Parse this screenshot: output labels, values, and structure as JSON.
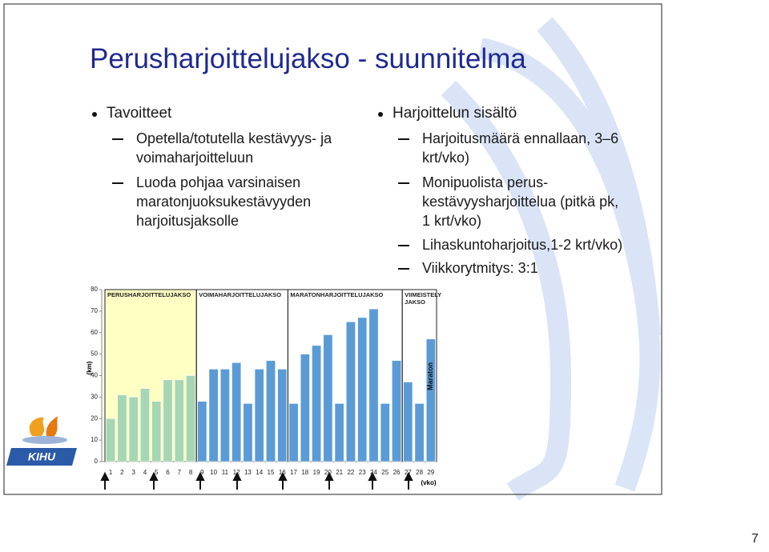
{
  "title": "Perusharjoittelujakso - suunnitelma",
  "left": {
    "heading": "Tavoitteet",
    "items": [
      [
        "Opetella/totutella kestävyys- ja",
        "voimaharjoitteluun"
      ],
      [
        "Luoda pohjaa varsinaisen",
        "maratonjuoksukestävyyden",
        "harjoitusjaksolle"
      ]
    ]
  },
  "right": {
    "heading": "Harjoittelun sisältö",
    "items": [
      [
        "Harjoitusmäärä ennallaan, 3–6",
        "krt/vko)"
      ],
      [
        "Monipuolista perus-",
        "kestävyysharjoittelua (pitkä pk,",
        "1 krt/vko)"
      ],
      [
        "Lihaskuntoharjoitus,1-2 krt/vko)"
      ],
      [
        "Viikkorytmitys: 3:1"
      ]
    ]
  },
  "logo": "KIHU",
  "page_number": "7",
  "chart_data": {
    "type": "bar",
    "x_label": "(vko)",
    "y_label": "(km)",
    "categories": [
      "1",
      "2",
      "3",
      "4",
      "5",
      "6",
      "7",
      "8",
      "9",
      "10",
      "11",
      "12",
      "13",
      "14",
      "15",
      "16",
      "17",
      "18",
      "19",
      "20",
      "21",
      "22",
      "23",
      "24",
      "25",
      "26",
      "27",
      "28",
      "29"
    ],
    "values": [
      20,
      31,
      30,
      34,
      28,
      38,
      38,
      40,
      28,
      43,
      43,
      46,
      27,
      43,
      47,
      43,
      27,
      50,
      54,
      59,
      27,
      65,
      67,
      71,
      27,
      47,
      37,
      27,
      57
    ],
    "ylim": [
      0,
      80
    ],
    "yticks": [
      0,
      10,
      20,
      30,
      40,
      50,
      60,
      70,
      80
    ],
    "phases": [
      {
        "label": "PERUSHARJOITTELUJAKSO",
        "weeks": [
          1,
          8
        ],
        "color": "#a6d6b4",
        "background": "#ffffc4"
      },
      {
        "label": "VOIMAHARJOITTELUJAKSO",
        "weeks": [
          9,
          16
        ],
        "color": "#5b9bd5"
      },
      {
        "label": "MARATONHARJOITTELUJAKSO",
        "weeks": [
          17,
          26
        ],
        "color": "#5b9bd5"
      },
      {
        "label": "VIIMEISTELY JAKSO",
        "weeks": [
          27,
          29
        ],
        "color": "#5b9bd5"
      }
    ],
    "annotation": "Maraton"
  }
}
